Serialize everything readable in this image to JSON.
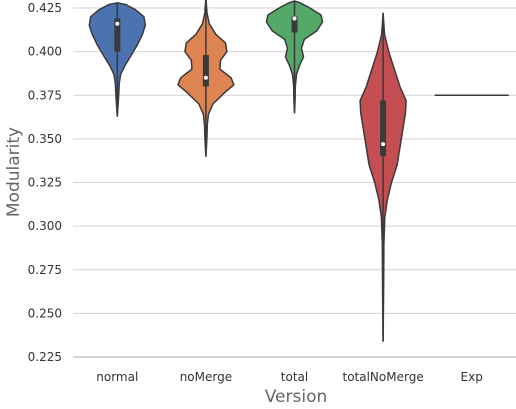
{
  "chart_data": {
    "type": "violin",
    "title": "",
    "xlabel": "Version",
    "ylabel": "Modularity",
    "ylim": [
      0.225,
      0.425
    ],
    "yticks": [
      "0.225",
      "0.250",
      "0.275",
      "0.300",
      "0.325",
      "0.350",
      "0.375",
      "0.400",
      "0.425"
    ],
    "grid": "horizontal",
    "categories": [
      "normal",
      "noMerge",
      "total",
      "totalNoMerge",
      "Exp"
    ],
    "series": [
      {
        "category": "normal",
        "color": "#4c72b0",
        "min": 0.363,
        "max": 0.428,
        "q1": 0.4,
        "median": 0.416,
        "q3": 0.419,
        "profile": [
          [
            0.363,
            0.0
          ],
          [
            0.368,
            0.02
          ],
          [
            0.375,
            0.05
          ],
          [
            0.382,
            0.07
          ],
          [
            0.387,
            0.12
          ],
          [
            0.392,
            0.27
          ],
          [
            0.398,
            0.5
          ],
          [
            0.404,
            0.72
          ],
          [
            0.41,
            0.9
          ],
          [
            0.415,
            1.0
          ],
          [
            0.42,
            0.95
          ],
          [
            0.424,
            0.65
          ],
          [
            0.427,
            0.3
          ],
          [
            0.428,
            0.0
          ]
        ]
      },
      {
        "category": "noMerge",
        "color": "#dd8452",
        "min": 0.34,
        "max": 0.431,
        "q1": 0.38,
        "median": 0.385,
        "q3": 0.398,
        "profile": [
          [
            0.34,
            0.0
          ],
          [
            0.346,
            0.02
          ],
          [
            0.352,
            0.04
          ],
          [
            0.358,
            0.05
          ],
          [
            0.364,
            0.09
          ],
          [
            0.37,
            0.25
          ],
          [
            0.377,
            0.7
          ],
          [
            0.381,
            1.0
          ],
          [
            0.385,
            0.9
          ],
          [
            0.39,
            0.5
          ],
          [
            0.395,
            0.52
          ],
          [
            0.4,
            0.75
          ],
          [
            0.405,
            0.7
          ],
          [
            0.41,
            0.35
          ],
          [
            0.416,
            0.12
          ],
          [
            0.422,
            0.04
          ],
          [
            0.431,
            0.0
          ]
        ]
      },
      {
        "category": "total",
        "color": "#55a868",
        "min": 0.365,
        "max": 0.429,
        "q1": 0.411,
        "median": 0.419,
        "q3": 0.42,
        "profile": [
          [
            0.365,
            0.0
          ],
          [
            0.372,
            0.02
          ],
          [
            0.38,
            0.03
          ],
          [
            0.387,
            0.07
          ],
          [
            0.392,
            0.18
          ],
          [
            0.397,
            0.32
          ],
          [
            0.402,
            0.25
          ],
          [
            0.407,
            0.35
          ],
          [
            0.412,
            0.8
          ],
          [
            0.417,
            1.0
          ],
          [
            0.421,
            0.95
          ],
          [
            0.425,
            0.55
          ],
          [
            0.428,
            0.2
          ],
          [
            0.429,
            0.0
          ]
        ]
      },
      {
        "category": "totalNoMerge",
        "color": "#c44e52",
        "min": 0.234,
        "max": 0.422,
        "q1": 0.34,
        "median": 0.347,
        "q3": 0.372,
        "profile": [
          [
            0.234,
            0.0
          ],
          [
            0.25,
            0.01
          ],
          [
            0.27,
            0.02
          ],
          [
            0.29,
            0.03
          ],
          [
            0.305,
            0.06
          ],
          [
            0.315,
            0.15
          ],
          [
            0.325,
            0.3
          ],
          [
            0.335,
            0.5
          ],
          [
            0.345,
            0.6
          ],
          [
            0.355,
            0.7
          ],
          [
            0.365,
            0.8
          ],
          [
            0.372,
            0.82
          ],
          [
            0.38,
            0.6
          ],
          [
            0.39,
            0.4
          ],
          [
            0.4,
            0.2
          ],
          [
            0.41,
            0.05
          ],
          [
            0.422,
            0.0
          ]
        ]
      },
      {
        "category": "Exp",
        "color": "#8172b3",
        "min": 0.375,
        "max": 0.375,
        "median": 0.375,
        "profile": []
      }
    ]
  }
}
